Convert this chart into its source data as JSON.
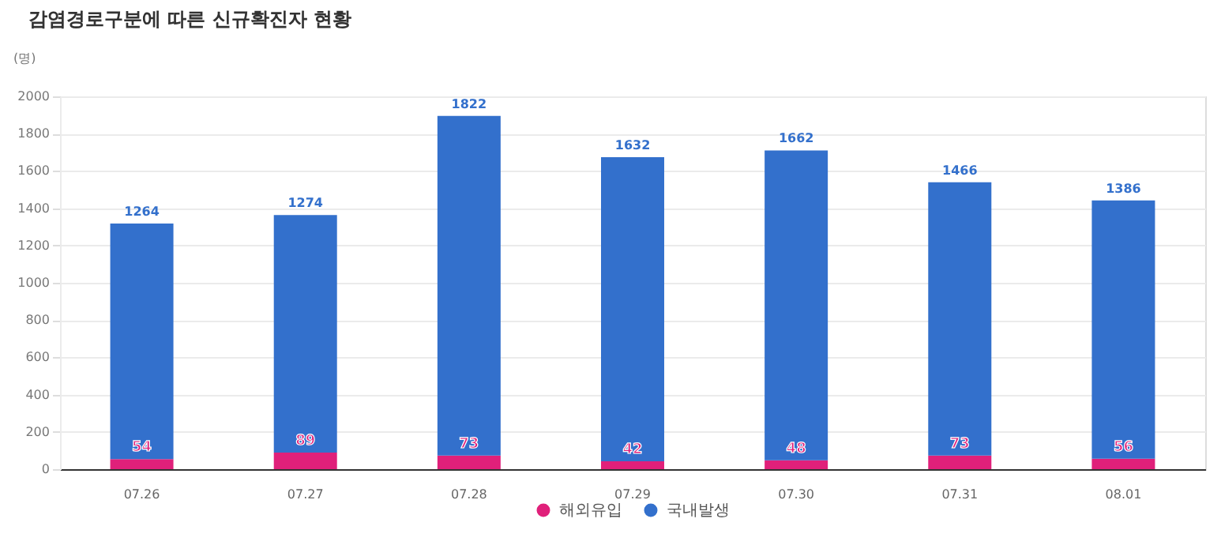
{
  "chart_data": {
    "type": "bar",
    "title": "감염경로구분에 따른 신규확진자 현황",
    "ylabel": "(명)",
    "stacked": true,
    "categories": [
      "07.26",
      "07.27",
      "07.28",
      "07.29",
      "07.30",
      "07.31",
      "08.01"
    ],
    "series": [
      {
        "name": "해외유입",
        "color": "#e0207a",
        "values": [
          54,
          89,
          73,
          42,
          48,
          73,
          56
        ]
      },
      {
        "name": "국내발생",
        "color": "#3370cc",
        "values": [
          1264,
          1274,
          1822,
          1632,
          1662,
          1466,
          1386
        ]
      }
    ],
    "ylim": [
      0,
      2000
    ],
    "yticks": [
      0,
      200,
      400,
      600,
      800,
      1000,
      1200,
      1400,
      1600,
      1800,
      2000
    ],
    "grid": "y",
    "legend": "bottom",
    "data_labels": true
  }
}
